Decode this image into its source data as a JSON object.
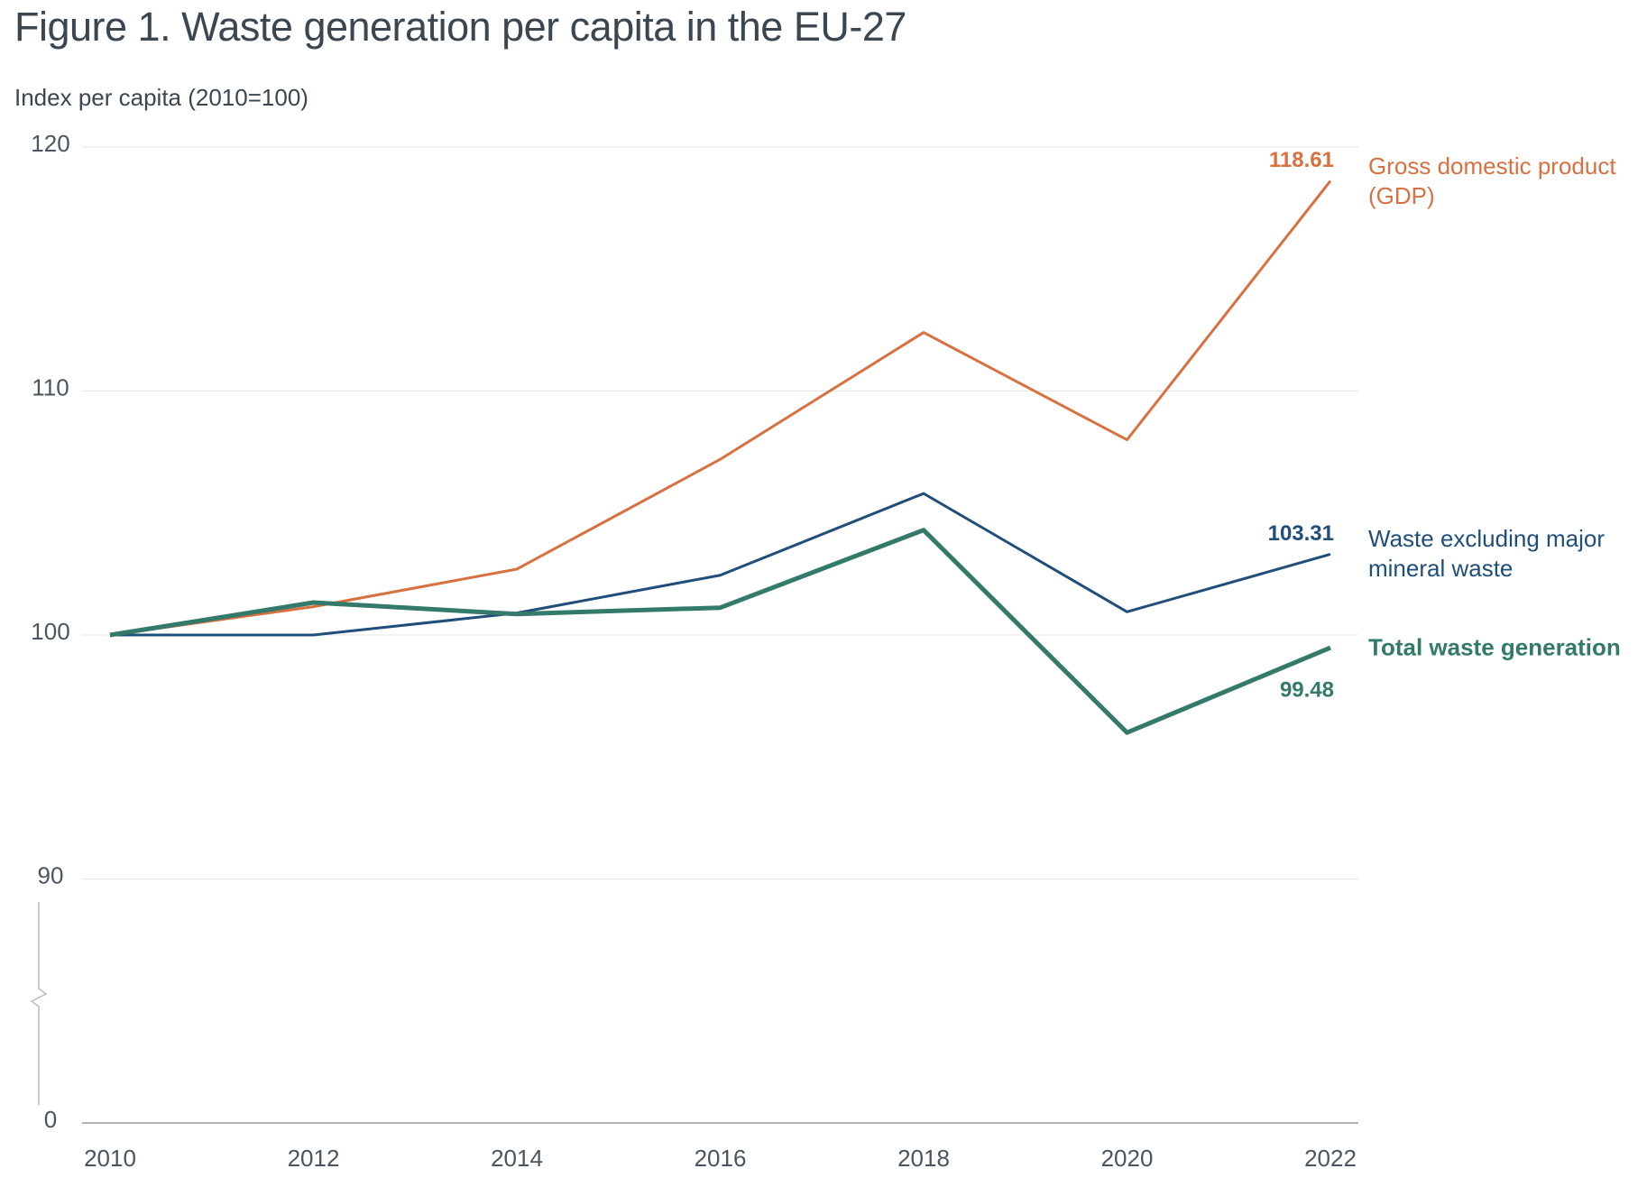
{
  "chart_data": {
    "type": "line",
    "title": "Figure 1. Waste generation per capita in the EU-27",
    "subtitle": "Index per capita (2010=100)",
    "x": [
      2010,
      2012,
      2014,
      2016,
      2018,
      2020,
      2022
    ],
    "xlim": [
      2010,
      2022
    ],
    "xticks": [
      2010,
      2012,
      2014,
      2016,
      2018,
      2020,
      2022
    ],
    "ylim": [
      0,
      120
    ],
    "yticks": [
      0,
      90,
      100,
      110,
      120
    ],
    "grid": true,
    "series": [
      {
        "name": "Gross domestic product (GDP)",
        "color": "#d9703f",
        "width": 3,
        "bold": false,
        "values": [
          100,
          101.16,
          102.7,
          107.2,
          112.4,
          108.0,
          118.61
        ]
      },
      {
        "name": "Waste excluding major mineral waste",
        "color": "#1f4e7a",
        "width": 3,
        "bold": false,
        "values": [
          100,
          100,
          100.9,
          102.45,
          105.8,
          100.95,
          103.31
        ]
      },
      {
        "name": "Total waste generation",
        "color": "#337a6a",
        "width": 5,
        "bold": true,
        "values": [
          100,
          101.33,
          100.86,
          101.12,
          104.3,
          96.0,
          99.48
        ]
      }
    ]
  }
}
